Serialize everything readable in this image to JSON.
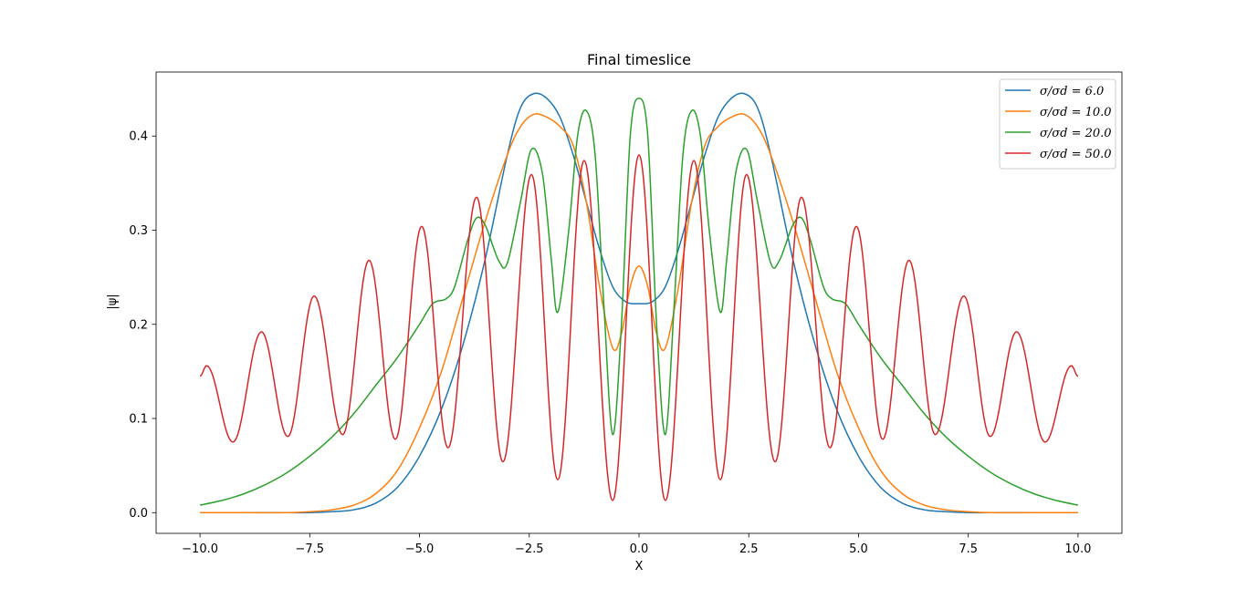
{
  "chart_data": {
    "type": "line",
    "title": "Final timeslice",
    "xlabel": "X",
    "ylabel": "|ψ|",
    "xlim": [
      -11.0,
      11.0
    ],
    "ylim": [
      -0.022,
      0.468
    ],
    "xticks": [
      -10.0,
      -7.5,
      -5.0,
      -2.5,
      0.0,
      2.5,
      5.0,
      7.5,
      10.0
    ],
    "xtick_labels": [
      "−10.0",
      "−7.5",
      "−5.0",
      "−2.5",
      "0.0",
      "2.5",
      "5.0",
      "7.5",
      "10.0"
    ],
    "yticks": [
      0.0,
      0.1,
      0.2,
      0.3,
      0.4
    ],
    "ytick_labels": [
      "0.0",
      "0.1",
      "0.2",
      "0.3",
      "0.4"
    ],
    "grid": false,
    "legend_position": "top-right",
    "series": [
      {
        "name": "σ/σd = 6.0",
        "color": "#1f77b4",
        "points": [
          [
            -10,
            0.0
          ],
          [
            -9,
            0.0
          ],
          [
            -8,
            0.0
          ],
          [
            -7.5,
            0.0
          ],
          [
            -7,
            0.001
          ],
          [
            -6.5,
            0.003
          ],
          [
            -6,
            0.01
          ],
          [
            -5.5,
            0.027
          ],
          [
            -5,
            0.06
          ],
          [
            -4.5,
            0.11
          ],
          [
            -4,
            0.18
          ],
          [
            -3.5,
            0.27
          ],
          [
            -3,
            0.38
          ],
          [
            -2.7,
            0.43
          ],
          [
            -2.4,
            0.445
          ],
          [
            -2.1,
            0.44
          ],
          [
            -1.8,
            0.42
          ],
          [
            -1.5,
            0.38
          ],
          [
            -1.2,
            0.33
          ],
          [
            -0.9,
            0.28
          ],
          [
            -0.6,
            0.24
          ],
          [
            -0.3,
            0.224
          ],
          [
            0,
            0.222
          ],
          [
            0.3,
            0.224
          ],
          [
            0.6,
            0.24
          ],
          [
            0.9,
            0.28
          ],
          [
            1.2,
            0.33
          ],
          [
            1.5,
            0.38
          ],
          [
            1.8,
            0.42
          ],
          [
            2.1,
            0.44
          ],
          [
            2.4,
            0.445
          ],
          [
            2.7,
            0.43
          ],
          [
            3,
            0.38
          ],
          [
            3.5,
            0.27
          ],
          [
            4,
            0.18
          ],
          [
            4.5,
            0.11
          ],
          [
            5,
            0.06
          ],
          [
            5.5,
            0.027
          ],
          [
            6,
            0.01
          ],
          [
            6.5,
            0.003
          ],
          [
            7,
            0.001
          ],
          [
            7.5,
            0.0
          ],
          [
            8,
            0.0
          ],
          [
            9,
            0.0
          ],
          [
            10,
            0.0
          ]
        ]
      },
      {
        "name": "σ/σd = 10.0",
        "color": "#ff7f0e",
        "points": [
          [
            -10,
            0.0
          ],
          [
            -9,
            0.0
          ],
          [
            -8,
            0.0
          ],
          [
            -7.5,
            0.001
          ],
          [
            -7,
            0.003
          ],
          [
            -6.5,
            0.008
          ],
          [
            -6,
            0.02
          ],
          [
            -5.5,
            0.045
          ],
          [
            -5,
            0.09
          ],
          [
            -4.5,
            0.15
          ],
          [
            -4,
            0.23
          ],
          [
            -3.5,
            0.31
          ],
          [
            -3,
            0.38
          ],
          [
            -2.7,
            0.41
          ],
          [
            -2.4,
            0.423
          ],
          [
            -2.1,
            0.42
          ],
          [
            -1.8,
            0.41
          ],
          [
            -1.5,
            0.39
          ],
          [
            -1.2,
            0.33
          ],
          [
            -0.9,
            0.24
          ],
          [
            -0.6,
            0.175
          ],
          [
            -0.4,
            0.19
          ],
          [
            -0.2,
            0.24
          ],
          [
            0,
            0.262
          ],
          [
            0.2,
            0.24
          ],
          [
            0.4,
            0.19
          ],
          [
            0.6,
            0.175
          ],
          [
            0.9,
            0.24
          ],
          [
            1.2,
            0.33
          ],
          [
            1.5,
            0.39
          ],
          [
            1.8,
            0.41
          ],
          [
            2.1,
            0.42
          ],
          [
            2.4,
            0.423
          ],
          [
            2.7,
            0.41
          ],
          [
            3,
            0.38
          ],
          [
            3.5,
            0.31
          ],
          [
            4,
            0.23
          ],
          [
            4.5,
            0.15
          ],
          [
            5,
            0.09
          ],
          [
            5.5,
            0.045
          ],
          [
            6,
            0.02
          ],
          [
            6.5,
            0.008
          ],
          [
            7,
            0.003
          ],
          [
            7.5,
            0.001
          ],
          [
            8,
            0.0
          ],
          [
            9,
            0.0
          ],
          [
            10,
            0.0
          ]
        ]
      },
      {
        "name": "σ/σd = 20.0",
        "color": "#2ca02c",
        "points": [
          [
            -10,
            0.008
          ],
          [
            -9.5,
            0.013
          ],
          [
            -9,
            0.02
          ],
          [
            -8.5,
            0.03
          ],
          [
            -8,
            0.043
          ],
          [
            -7.5,
            0.06
          ],
          [
            -7,
            0.08
          ],
          [
            -6.5,
            0.105
          ],
          [
            -6,
            0.135
          ],
          [
            -5.5,
            0.165
          ],
          [
            -5,
            0.2
          ],
          [
            -4.7,
            0.222
          ],
          [
            -4.4,
            0.227
          ],
          [
            -4.2,
            0.24
          ],
          [
            -3.9,
            0.29
          ],
          [
            -3.7,
            0.313
          ],
          [
            -3.5,
            0.305
          ],
          [
            -3.2,
            0.268
          ],
          [
            -3.0,
            0.265
          ],
          [
            -2.7,
            0.33
          ],
          [
            -2.45,
            0.386
          ],
          [
            -2.2,
            0.36
          ],
          [
            -2.0,
            0.27
          ],
          [
            -1.85,
            0.213
          ],
          [
            -1.6,
            0.3
          ],
          [
            -1.4,
            0.4
          ],
          [
            -1.2,
            0.427
          ],
          [
            -1.0,
            0.38
          ],
          [
            -0.8,
            0.22
          ],
          [
            -0.6,
            0.083
          ],
          [
            -0.4,
            0.2
          ],
          [
            -0.2,
            0.4
          ],
          [
            0,
            0.44
          ],
          [
            0.2,
            0.4
          ],
          [
            0.4,
            0.2
          ],
          [
            0.6,
            0.083
          ],
          [
            0.8,
            0.22
          ],
          [
            1.0,
            0.38
          ],
          [
            1.2,
            0.427
          ],
          [
            1.4,
            0.4
          ],
          [
            1.6,
            0.3
          ],
          [
            1.85,
            0.213
          ],
          [
            2.0,
            0.27
          ],
          [
            2.2,
            0.36
          ],
          [
            2.45,
            0.386
          ],
          [
            2.7,
            0.33
          ],
          [
            3.0,
            0.265
          ],
          [
            3.2,
            0.268
          ],
          [
            3.5,
            0.305
          ],
          [
            3.7,
            0.313
          ],
          [
            3.9,
            0.29
          ],
          [
            4.2,
            0.24
          ],
          [
            4.4,
            0.227
          ],
          [
            4.7,
            0.222
          ],
          [
            5,
            0.2
          ],
          [
            5.5,
            0.165
          ],
          [
            6,
            0.135
          ],
          [
            6.5,
            0.105
          ],
          [
            7,
            0.08
          ],
          [
            7.5,
            0.06
          ],
          [
            8,
            0.043
          ],
          [
            8.5,
            0.03
          ],
          [
            9,
            0.02
          ],
          [
            9.5,
            0.013
          ],
          [
            10,
            0.008
          ]
        ]
      },
      {
        "name": "σ/σd = 50.0",
        "color": "#d62728",
        "extrema": [
          [
            -10,
            0.145
          ],
          [
            -9.85,
            0.156
          ],
          [
            -9.25,
            0.075
          ],
          [
            -8.6,
            0.192
          ],
          [
            -8.0,
            0.081
          ],
          [
            -7.4,
            0.23
          ],
          [
            -6.75,
            0.083
          ],
          [
            -6.15,
            0.268
          ],
          [
            -5.55,
            0.078
          ],
          [
            -4.95,
            0.304
          ],
          [
            -4.35,
            0.069
          ],
          [
            -3.7,
            0.335
          ],
          [
            -3.1,
            0.054
          ],
          [
            -2.45,
            0.359
          ],
          [
            -1.85,
            0.035
          ],
          [
            -1.25,
            0.374
          ],
          [
            -0.6,
            0.013
          ],
          [
            0,
            0.38
          ],
          [
            0.6,
            0.013
          ],
          [
            1.25,
            0.374
          ],
          [
            1.85,
            0.035
          ],
          [
            2.45,
            0.359
          ],
          [
            3.1,
            0.054
          ],
          [
            3.7,
            0.335
          ],
          [
            4.35,
            0.069
          ],
          [
            4.95,
            0.304
          ],
          [
            5.55,
            0.078
          ],
          [
            6.15,
            0.268
          ],
          [
            6.75,
            0.083
          ],
          [
            7.4,
            0.23
          ],
          [
            8.0,
            0.081
          ],
          [
            8.6,
            0.192
          ],
          [
            9.25,
            0.075
          ],
          [
            9.85,
            0.156
          ],
          [
            10,
            0.145
          ]
        ]
      }
    ]
  }
}
